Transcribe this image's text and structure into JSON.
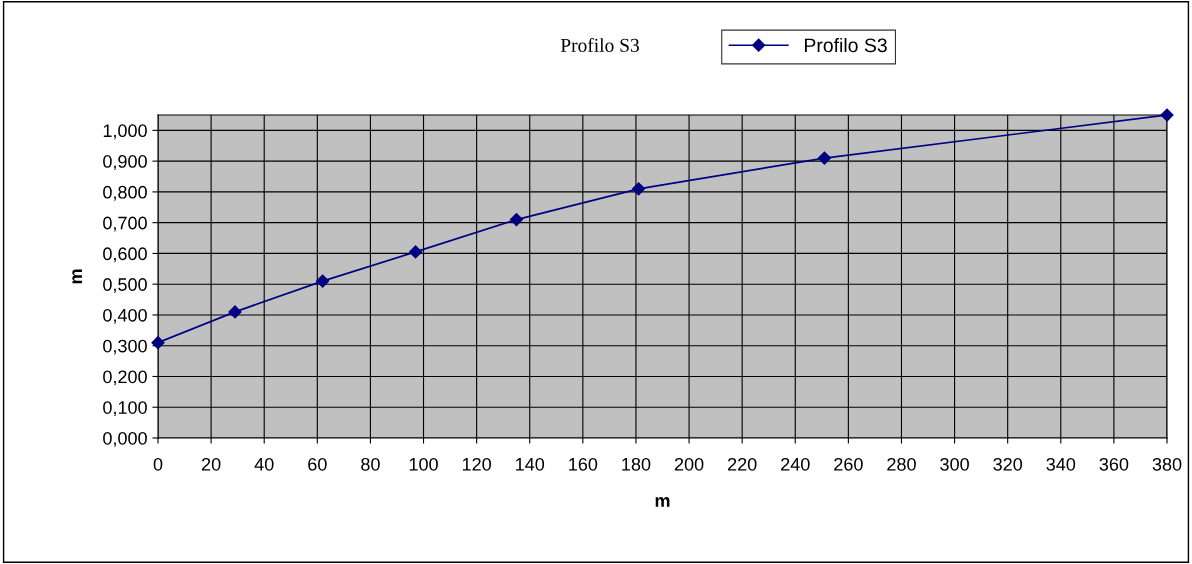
{
  "chart_data": {
    "type": "line",
    "title": "Profilo S3",
    "xlabel": "m",
    "ylabel": "m",
    "x": [
      0,
      29,
      62,
      97,
      135,
      181,
      251,
      380
    ],
    "series": [
      {
        "name": "Profilo S3",
        "color": "#000080",
        "values": [
          0.31,
          0.41,
          0.51,
          0.605,
          0.71,
          0.81,
          0.91,
          1.05
        ]
      }
    ],
    "xlim": [
      0,
      380
    ],
    "xticks": [
      0,
      20,
      40,
      60,
      80,
      100,
      120,
      140,
      160,
      180,
      200,
      220,
      240,
      260,
      280,
      300,
      320,
      340,
      360,
      380
    ],
    "ylim": [
      0,
      1.05
    ],
    "yticks": [
      {
        "value": 0,
        "label": "0,000"
      },
      {
        "value": 0.1,
        "label": "0,100"
      },
      {
        "value": 0.2,
        "label": "0,200"
      },
      {
        "value": 0.3,
        "label": "0,300"
      },
      {
        "value": 0.4,
        "label": "0,400"
      },
      {
        "value": 0.5,
        "label": "0,500"
      },
      {
        "value": 0.6,
        "label": "0,600"
      },
      {
        "value": 0.7,
        "label": "0,700"
      },
      {
        "value": 0.8,
        "label": "0,800"
      },
      {
        "value": 0.9,
        "label": "0,900"
      },
      {
        "value": 1.0,
        "label": "1,000"
      }
    ],
    "grid": true,
    "legend": "top",
    "marker": "diamond",
    "line_style": "solid"
  }
}
